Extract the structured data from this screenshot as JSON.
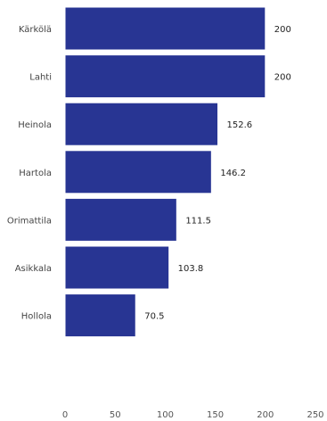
{
  "chart_data": {
    "type": "bar",
    "orientation": "horizontal",
    "categories": [
      "Kärkölä",
      "Lahti",
      "Heinola",
      "Hartola",
      "Orimattila",
      "Asikkala",
      "Hollola"
    ],
    "values": [
      200,
      200,
      152.6,
      146.2,
      111.5,
      103.8,
      70.5
    ],
    "value_labels": [
      "200",
      "200",
      "152.6",
      "146.2",
      "111.5",
      "103.8",
      "70.5"
    ],
    "xlim": [
      0,
      250
    ],
    "x_ticks": [
      "0",
      "50",
      "100",
      "150",
      "200",
      "250"
    ],
    "grid": false,
    "colors": {
      "bar": "#283593",
      "bar_edge": "#ffffff"
    }
  }
}
